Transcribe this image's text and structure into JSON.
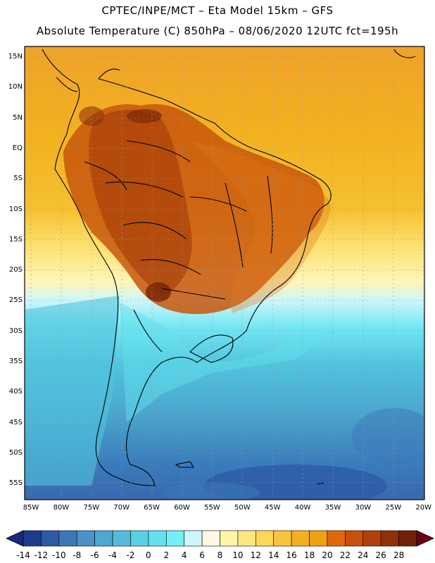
{
  "header": {
    "line1": "CPTEC/INPE/MCT –  Eta Model 15km – GFS",
    "line2": "Absolute Temperature (C) 850hPa – 08/06/2020 12UTC fct=195h"
  },
  "map": {
    "lat_labels": [
      "15N",
      "10N",
      "5N",
      "EQ",
      "5S",
      "10S",
      "15S",
      "20S",
      "25S",
      "30S",
      "35S",
      "40S",
      "45S",
      "50S",
      "55S"
    ],
    "lon_labels": [
      "85W",
      "80W",
      "75W",
      "70W",
      "65W",
      "60W",
      "55W",
      "50W",
      "45W",
      "40W",
      "35W",
      "30W",
      "25W",
      "20W"
    ],
    "variable": "Absolute Temperature",
    "units": "C",
    "level": "850hPa"
  },
  "colorbar": {
    "labels": [
      "-14",
      "-12",
      "-10",
      "-8",
      "-6",
      "-4",
      "-2",
      "0",
      "2",
      "4",
      "6",
      "8",
      "10",
      "12",
      "14",
      "16",
      "18",
      "20",
      "22",
      "24",
      "26",
      "28"
    ],
    "colors": [
      "#1e3c8c",
      "#2c5aa6",
      "#3b78b8",
      "#4a92c8",
      "#4ea8d2",
      "#52bcdc",
      "#5ad0e6",
      "#62e0ee",
      "#72f0f6",
      "#cdf6fa",
      "#fff8e6",
      "#fff5a8",
      "#fee680",
      "#fdd85a",
      "#f8c43c",
      "#f4b020",
      "#f0a010",
      "#e0680a",
      "#c8500a",
      "#b0400a",
      "#903008",
      "#702008"
    ],
    "min_arrow_color": "#1a2a7a",
    "max_arrow_color": "#6a0018"
  }
}
